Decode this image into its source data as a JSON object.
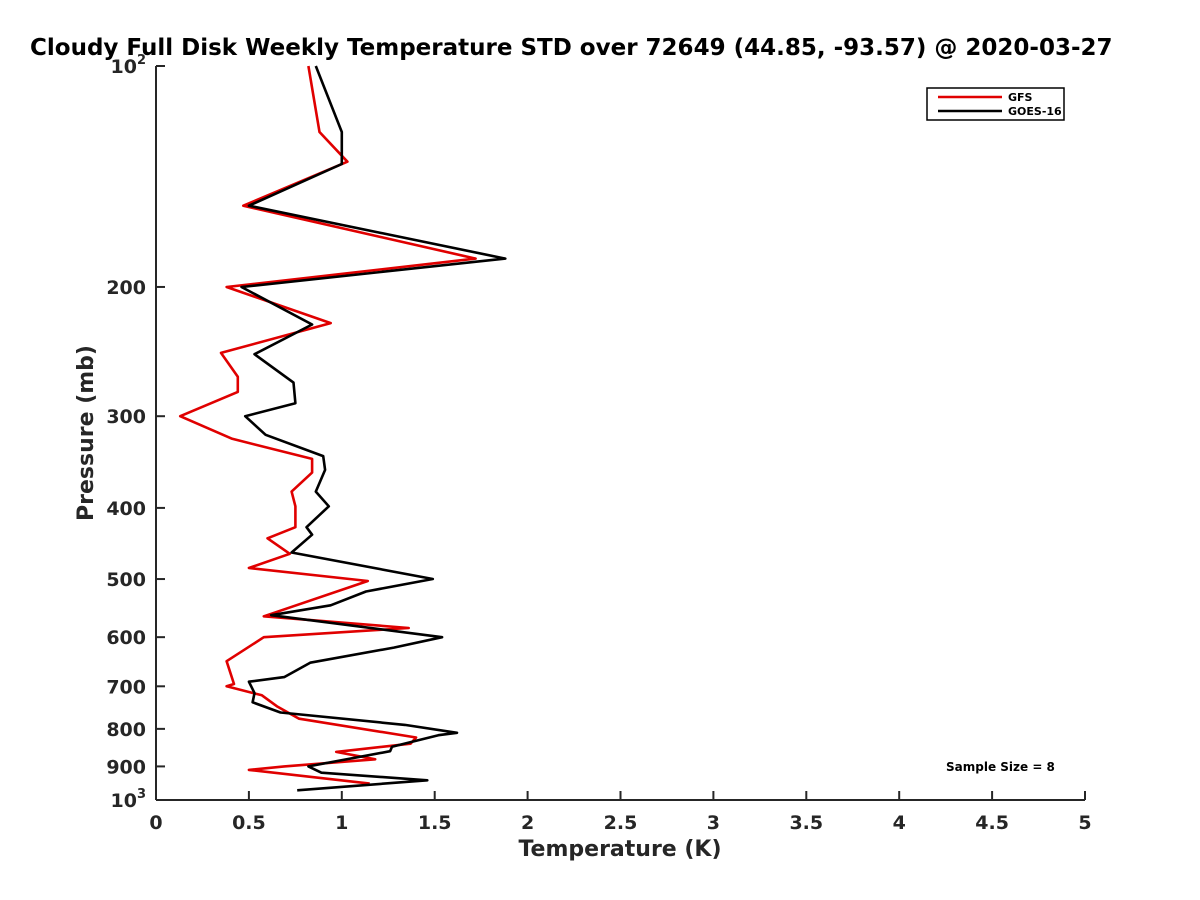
{
  "chart_data": {
    "type": "line",
    "title": "Cloudy Full Disk Weekly Temperature STD over 72649 (44.85, -93.57) @ 2020-03-27",
    "xlabel": "Temperature (K)",
    "ylabel": "Pressure (mb)",
    "xlim": [
      0,
      5
    ],
    "ylim": [
      1000,
      100
    ],
    "yscale": "log",
    "y_reversed": true,
    "xticks": [
      "0",
      "0.5",
      "1",
      "1.5",
      "2",
      "2.5",
      "3",
      "3.5",
      "4",
      "4.5",
      "5"
    ],
    "yticks": [
      {
        "value": 100,
        "base": "10",
        "exp": "2",
        "label": ""
      },
      {
        "value": 200,
        "base": "",
        "exp": "",
        "label": "200"
      },
      {
        "value": 300,
        "base": "",
        "exp": "",
        "label": "300"
      },
      {
        "value": 400,
        "base": "",
        "exp": "",
        "label": "400"
      },
      {
        "value": 500,
        "base": "",
        "exp": "",
        "label": "500"
      },
      {
        "value": 600,
        "base": "",
        "exp": "",
        "label": "600"
      },
      {
        "value": 700,
        "base": "",
        "exp": "",
        "label": "700"
      },
      {
        "value": 800,
        "base": "",
        "exp": "",
        "label": "800"
      },
      {
        "value": 900,
        "base": "",
        "exp": "",
        "label": "900"
      },
      {
        "value": 1000,
        "base": "10",
        "exp": "3",
        "label": ""
      }
    ],
    "grid": false,
    "legend_position": "top-right",
    "annotation": "Sample Size = 8",
    "series": [
      {
        "name": "GFS",
        "color": "#e00000",
        "x": [
          0.82,
          0.88,
          1.03,
          0.47,
          1.72,
          0.38,
          0.94,
          0.35,
          0.44,
          0.44,
          0.13,
          0.41,
          0.84,
          0.84,
          0.73,
          0.75,
          0.75,
          0.6,
          0.72,
          0.5,
          1.14,
          0.58,
          1.36,
          0.58,
          0.38,
          0.42,
          0.38,
          0.57,
          0.65,
          0.77,
          1.4,
          1.37,
          0.97,
          1.18,
          0.69,
          0.5,
          1.15
        ],
        "y": [
          100,
          123,
          135,
          155,
          183,
          200,
          224,
          246,
          265,
          278,
          300,
          322,
          343,
          358,
          380,
          398,
          425,
          440,
          462,
          483,
          503,
          562,
          583,
          600,
          647,
          695,
          700,
          720,
          745,
          775,
          822,
          838,
          860,
          880,
          900,
          910,
          950
        ]
      },
      {
        "name": "GOES-16",
        "color": "#000000",
        "x": [
          0.86,
          1.0,
          1.0,
          0.5,
          1.88,
          0.46,
          0.84,
          0.53,
          0.74,
          0.75,
          0.48,
          0.59,
          0.9,
          0.91,
          0.86,
          0.93,
          0.81,
          0.84,
          0.73,
          1.49,
          1.13,
          0.94,
          0.62,
          1.54,
          1.28,
          0.83,
          0.69,
          0.5,
          0.53,
          0.52,
          0.67,
          1.34,
          1.62,
          1.52,
          1.27,
          1.26,
          0.82,
          0.89,
          1.46,
          0.76
        ],
        "y": [
          100,
          123,
          136,
          155,
          183,
          200,
          225,
          247,
          270,
          288,
          300,
          318,
          340,
          355,
          380,
          398,
          425,
          435,
          460,
          500,
          520,
          543,
          560,
          600,
          620,
          650,
          680,
          690,
          715,
          736,
          760,
          790,
          810,
          816,
          846,
          858,
          900,
          918,
          940,
          970
        ]
      }
    ]
  }
}
